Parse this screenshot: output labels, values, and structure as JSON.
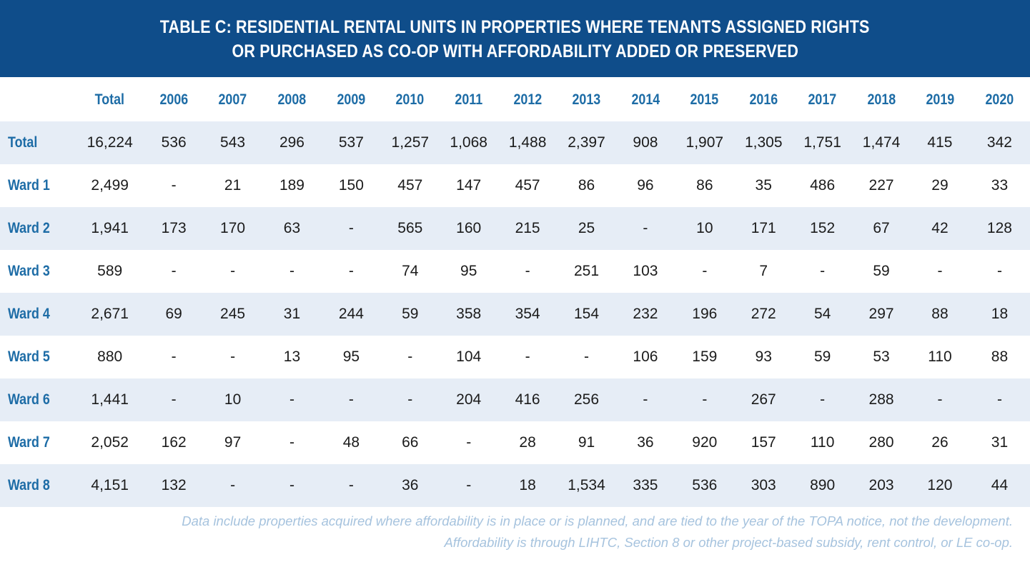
{
  "title": {
    "line1": "TABLE C: RESIDENTIAL RENTAL UNITS IN PROPERTIES WHERE TENANTS ASSIGNED RIGHTS",
    "line2": "OR PURCHASED AS CO-OP WITH AFFORDABILITY ADDED OR PRESERVED"
  },
  "table": {
    "columns": [
      "Total",
      "2006",
      "2007",
      "2008",
      "2009",
      "2010",
      "2011",
      "2012",
      "2013",
      "2014",
      "2015",
      "2016",
      "2017",
      "2018",
      "2019",
      "2020"
    ],
    "rows": [
      {
        "label": "Total",
        "cells": [
          "16,224",
          "536",
          "543",
          "296",
          "537",
          "1,257",
          "1,068",
          "1,488",
          "2,397",
          "908",
          "1,907",
          "1,305",
          "1,751",
          "1,474",
          "415",
          "342"
        ]
      },
      {
        "label": "Ward 1",
        "cells": [
          "2,499",
          "-",
          "21",
          "189",
          "150",
          "457",
          "147",
          "457",
          "86",
          "96",
          "86",
          "35",
          "486",
          "227",
          "29",
          "33"
        ]
      },
      {
        "label": "Ward 2",
        "cells": [
          "1,941",
          "173",
          "170",
          "63",
          "-",
          "565",
          "160",
          "215",
          "25",
          "-",
          "10",
          "171",
          "152",
          "67",
          "42",
          "128"
        ]
      },
      {
        "label": "Ward 3",
        "cells": [
          "589",
          "-",
          "-",
          "-",
          "-",
          "74",
          "95",
          "-",
          "251",
          "103",
          "-",
          "7",
          "-",
          "59",
          "-",
          "-"
        ]
      },
      {
        "label": "Ward 4",
        "cells": [
          "2,671",
          "69",
          "245",
          "31",
          "244",
          "59",
          "358",
          "354",
          "154",
          "232",
          "196",
          "272",
          "54",
          "297",
          "88",
          "18"
        ]
      },
      {
        "label": "Ward 5",
        "cells": [
          "880",
          "-",
          "-",
          "13",
          "95",
          "-",
          "104",
          "-",
          "-",
          "106",
          "159",
          "93",
          "59",
          "53",
          "110",
          "88"
        ]
      },
      {
        "label": "Ward 6",
        "cells": [
          "1,441",
          "-",
          "10",
          "-",
          "-",
          "-",
          "204",
          "416",
          "256",
          "-",
          "-",
          "267",
          "-",
          "288",
          "-",
          "-"
        ]
      },
      {
        "label": "Ward 7",
        "cells": [
          "2,052",
          "162",
          "97",
          "-",
          "48",
          "66",
          "-",
          "28",
          "91",
          "36",
          "920",
          "157",
          "110",
          "280",
          "26",
          "31"
        ]
      },
      {
        "label": "Ward 8",
        "cells": [
          "4,151",
          "132",
          "-",
          "-",
          "-",
          "36",
          "-",
          "18",
          "1,534",
          "335",
          "536",
          "303",
          "890",
          "203",
          "120",
          "44"
        ]
      }
    ]
  },
  "footnote": {
    "line1": "Data include properties acquired where affordability is in place or is planned, and are tied to the year of the TOPA notice, not the development.",
    "line2": "Affordability is through LIHTC, Section 8 or other project-based subsidy, rent control, or LE co-op."
  },
  "colors": {
    "header_bg": "#0f4d8a",
    "label_blue": "#1d6ca6",
    "shaded_row": "#e6edf6",
    "footnote": "#a6c3de"
  }
}
